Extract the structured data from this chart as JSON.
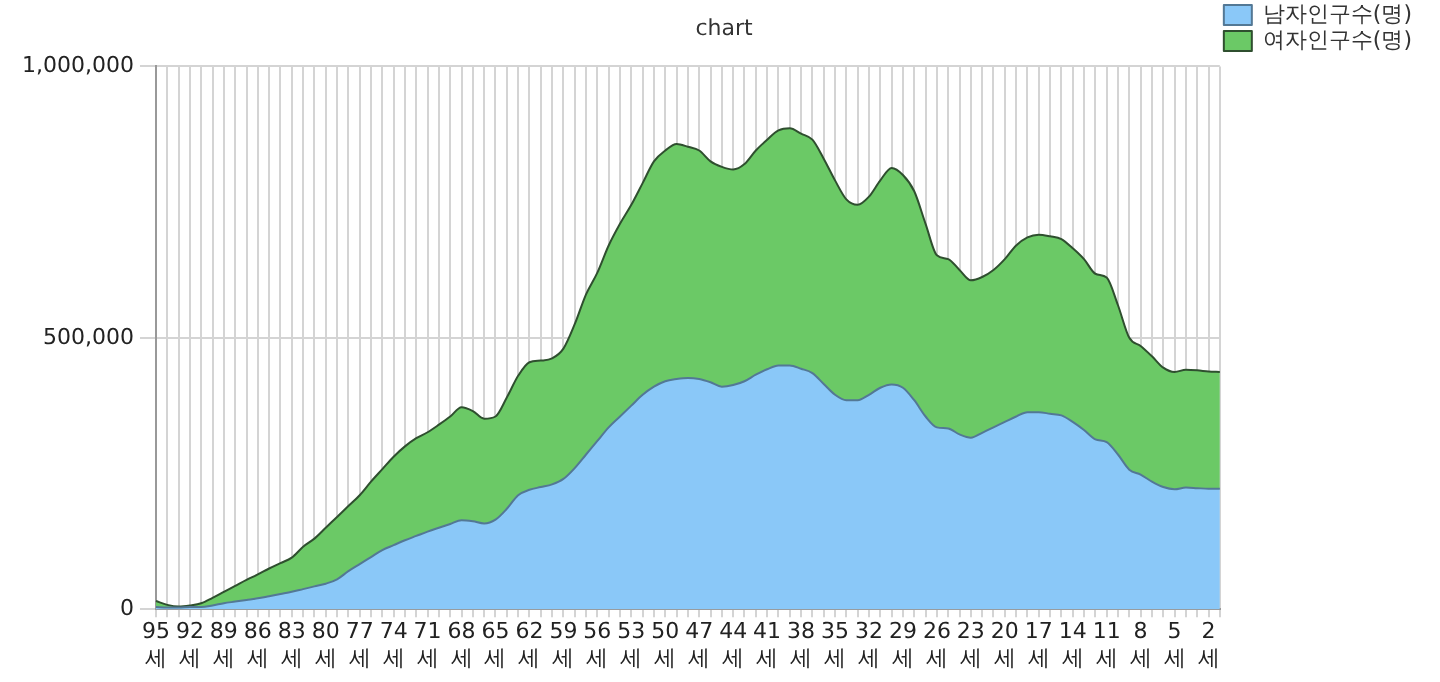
{
  "chart_data": {
    "type": "area",
    "title": "chart",
    "stacked": true,
    "grid": true,
    "legend": "top right",
    "marker": "none",
    "categories": [
      "95\n세",
      null,
      null,
      "92\n세",
      null,
      null,
      "89\n세",
      null,
      null,
      "86\n세",
      null,
      null,
      "83\n세",
      null,
      null,
      "80\n세",
      null,
      null,
      "77\n세",
      null,
      null,
      "74\n세",
      null,
      null,
      "71\n세",
      null,
      null,
      "68\n세",
      null,
      null,
      "65\n세",
      null,
      null,
      "62\n세",
      null,
      null,
      "59\n세",
      null,
      null,
      "56\n세",
      null,
      null,
      "53\n세",
      null,
      null,
      "50\n세",
      null,
      null,
      "47\n세",
      null,
      null,
      "44\n세",
      null,
      null,
      "41\n세",
      null,
      null,
      "38\n세",
      null,
      null,
      "35\n세",
      null,
      null,
      "32\n세",
      null,
      null,
      "29\n세",
      null,
      null,
      "26\n세",
      null,
      null,
      "23\n세",
      null,
      null,
      "20\n세",
      null,
      null,
      "17\n세",
      null,
      null,
      "14\n세",
      null,
      null,
      "11\n세",
      null,
      null,
      "8\n세",
      null,
      null,
      "5\n세",
      null,
      null,
      "2\n세",
      null
    ],
    "ylim": [
      0,
      1000000
    ],
    "yticks": [
      {
        "value": 0,
        "label": "0"
      },
      {
        "value": 500000,
        "label": "500,000"
      },
      {
        "value": 1000000,
        "label": "1,000,000"
      }
    ],
    "series": [
      {
        "name": "남자인구수(명)",
        "color": "#8ac8f8",
        "values": [
          4000,
          3000,
          3000,
          4000,
          4000,
          7000,
          11000,
          14000,
          17000,
          20000,
          24000,
          28000,
          32000,
          37000,
          42000,
          47000,
          55000,
          70000,
          83000,
          96000,
          109000,
          118000,
          127000,
          135000,
          143000,
          150000,
          157000,
          164000,
          162000,
          158000,
          165000,
          185000,
          210000,
          220000,
          225000,
          230000,
          240000,
          260000,
          285000,
          310000,
          335000,
          355000,
          375000,
          395000,
          410000,
          420000,
          424000,
          426000,
          424000,
          418000,
          410000,
          413000,
          420000,
          432000,
          442000,
          449000,
          449000,
          443000,
          435000,
          415000,
          395000,
          385000,
          385000,
          395000,
          408000,
          414000,
          408000,
          385000,
          355000,
          335000,
          333000,
          322000,
          316000,
          325000,
          335000,
          345000,
          355000,
          363000,
          363000,
          360000,
          357000,
          345000,
          330000,
          313000,
          308000,
          285000,
          257000,
          248000,
          235000,
          225000,
          221000,
          224000,
          223000,
          222000,
          222000
        ]
      },
      {
        "name": "여자인구수(명)",
        "color": "#6bc966",
        "values": [
          11000,
          5000,
          2000,
          3000,
          7000,
          14000,
          21000,
          29000,
          37000,
          44000,
          51000,
          57000,
          63000,
          78000,
          88000,
          103000,
          115000,
          120000,
          127000,
          139000,
          149000,
          163000,
          173000,
          180000,
          183000,
          190000,
          198000,
          208000,
          203000,
          193000,
          190000,
          205000,
          220000,
          235000,
          233000,
          232000,
          240000,
          265000,
          295000,
          310000,
          335000,
          355000,
          370000,
          390000,
          415000,
          425000,
          433000,
          426000,
          421000,
          407000,
          405000,
          397000,
          400000,
          413000,
          423000,
          433000,
          437000,
          433000,
          430000,
          415000,
          395000,
          370000,
          360000,
          365000,
          382000,
          399000,
          392000,
          385000,
          355000,
          317000,
          312000,
          303000,
          290000,
          287000,
          290000,
          300000,
          315000,
          322000,
          327000,
          327000,
          325000,
          320000,
          315000,
          305000,
          303000,
          275000,
          243000,
          237000,
          231000,
          220000,
          216000,
          217000,
          217000,
          216000,
          215000
        ]
      }
    ]
  }
}
